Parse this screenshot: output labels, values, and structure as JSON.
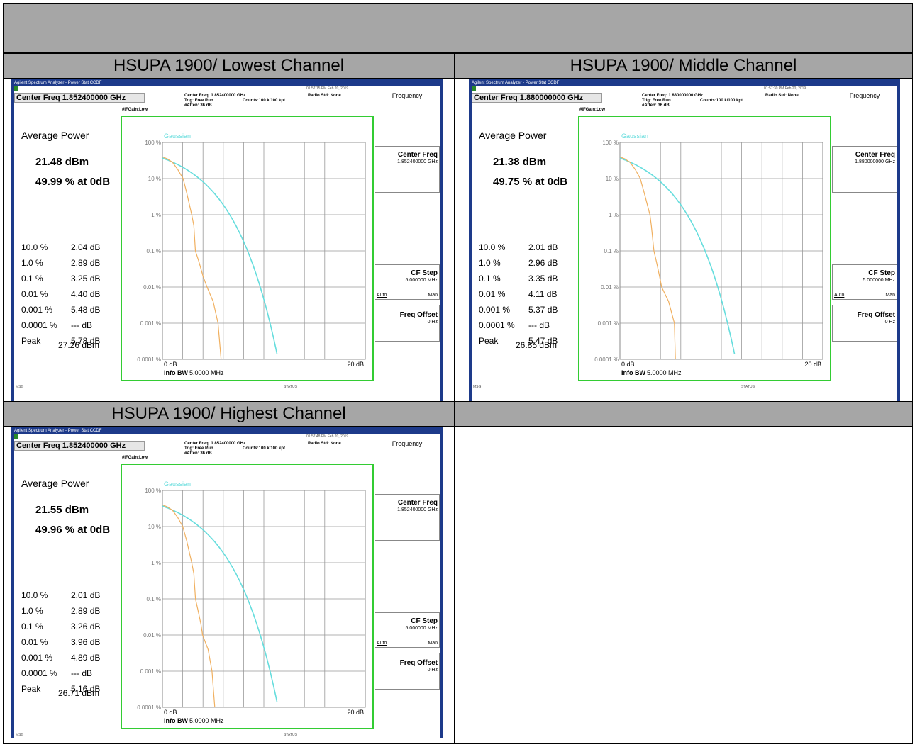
{
  "panels": [
    {
      "heading": "HSUPA 1900/ Lowest Channel",
      "titlebar": "Agilent Spectrum Analyzer - Power Stat CCDF",
      "timestamp": "01:57:15 PM Feb 20, 2019",
      "center_freq_box": "Center Freq 1.852400000 GHz",
      "meta_center": "Center Freq: 1.852400000 GHz",
      "meta_trig": "Trig: Free Run",
      "meta_counts": "Counts:100 k/100 kpt",
      "meta_radio": "Radio Std: None",
      "meta_gain": "#IFGain:Low",
      "meta_atten": "#Atten: 36 dB",
      "avg_title": "Average Power",
      "avg_power": "21.48 dBm",
      "pct_at_0db": "49.99 % at 0dB",
      "stats": [
        {
          "k": "10.0 %",
          "v": "2.04 dB"
        },
        {
          "k": "1.0 %",
          "v": "2.89 dB"
        },
        {
          "k": "0.1 %",
          "v": "3.25 dB"
        },
        {
          "k": "0.01 %",
          "v": "4.40 dB"
        },
        {
          "k": "0.001 %",
          "v": "5.48 dB"
        },
        {
          "k": "0.0001 %",
          "v": "--- dB"
        },
        {
          "k": "Peak",
          "v": "5.78 dB"
        }
      ],
      "peak_dbm": "27.26 dBm",
      "softkey_title": "Frequency",
      "sk_center_title": "Center Freq",
      "sk_center_val": "1.852400000 GHz",
      "sk_step_title": "CF Step",
      "sk_step_val": "5.000000 MHz",
      "sk_auto": "Auto",
      "sk_man": "Man",
      "sk_offset_title": "Freq Offset",
      "sk_offset_val": "0 Hz",
      "curve": {
        "gaussian_label": "Gaussian",
        "measured_db": [
          0,
          0.5,
          1.0,
          1.5,
          2.04,
          2.4,
          2.89,
          3.1,
          3.25,
          3.6,
          4.0,
          4.4,
          5.0,
          5.48,
          5.78
        ],
        "measured_pct": [
          40,
          35,
          28,
          18,
          10,
          4,
          1.0,
          0.5,
          0.1,
          0.05,
          0.02,
          0.01,
          0.004,
          0.001,
          0.0001
        ]
      },
      "msg": "MSG",
      "status": "STATUS"
    },
    {
      "heading": "HSUPA 1900/ Middle Channel",
      "titlebar": "Agilent Spectrum Analyzer - Power Stat CCDF",
      "timestamp": "01:57:30 PM Feb 20, 2019",
      "center_freq_box": "Center Freq 1.880000000 GHz",
      "meta_center": "Center Freq: 1.880000000 GHz",
      "meta_trig": "Trig: Free Run",
      "meta_counts": "Counts:100 k/100 kpt",
      "meta_radio": "Radio Std: None",
      "meta_gain": "#IFGain:Low",
      "meta_atten": "#Atten: 36 dB",
      "avg_title": "Average Power",
      "avg_power": "21.38 dBm",
      "pct_at_0db": "49.75 % at 0dB",
      "stats": [
        {
          "k": "10.0 %",
          "v": "2.01 dB"
        },
        {
          "k": "1.0 %",
          "v": "2.96 dB"
        },
        {
          "k": "0.1 %",
          "v": "3.35 dB"
        },
        {
          "k": "0.01 %",
          "v": "4.11 dB"
        },
        {
          "k": "0.001 %",
          "v": "5.37 dB"
        },
        {
          "k": "0.0001 %",
          "v": "--- dB"
        },
        {
          "k": "Peak",
          "v": "5.47 dB"
        }
      ],
      "peak_dbm": "26.85 dBm",
      "softkey_title": "Frequency",
      "sk_center_title": "Center Freq",
      "sk_center_val": "1.880000000 GHz",
      "sk_step_title": "CF Step",
      "sk_step_val": "5.000000 MHz",
      "sk_auto": "Auto",
      "sk_man": "Man",
      "sk_offset_title": "Freq Offset",
      "sk_offset_val": "0 Hz",
      "curve": {
        "gaussian_label": "Gaussian",
        "measured_db": [
          0,
          0.5,
          1.0,
          1.5,
          2.01,
          2.4,
          2.96,
          3.1,
          3.35,
          3.6,
          3.9,
          4.11,
          4.8,
          5.37,
          5.47
        ],
        "measured_pct": [
          40,
          35,
          28,
          18,
          10,
          4,
          1.0,
          0.5,
          0.1,
          0.05,
          0.02,
          0.01,
          0.004,
          0.001,
          0.0001
        ]
      },
      "msg": "MSG",
      "status": "STATUS"
    },
    {
      "heading": "HSUPA 1900/ Highest Channel",
      "titlebar": "Agilent Spectrum Analyzer - Power Stat CCDF",
      "timestamp": "01:57:48 PM Feb 20, 2019",
      "center_freq_box": "Center Freq 1.852400000 GHz",
      "meta_center": "Center Freq: 1.852400000 GHz",
      "meta_trig": "Trig: Free Run",
      "meta_counts": "Counts:100 k/100 kpt",
      "meta_radio": "Radio Std: None",
      "meta_gain": "#IFGain:Low",
      "meta_atten": "#Atten: 36 dB",
      "avg_title": "Average Power",
      "avg_power": "21.55 dBm",
      "pct_at_0db": "49.96 % at 0dB",
      "stats": [
        {
          "k": "10.0 %",
          "v": "2.01 dB"
        },
        {
          "k": "1.0 %",
          "v": "2.89 dB"
        },
        {
          "k": "0.1 %",
          "v": "3.26 dB"
        },
        {
          "k": "0.01 %",
          "v": "3.96 dB"
        },
        {
          "k": "0.001 %",
          "v": "4.89 dB"
        },
        {
          "k": "0.0001 %",
          "v": "--- dB"
        },
        {
          "k": "Peak",
          "v": "5.16 dB"
        }
      ],
      "peak_dbm": "26.71 dBm",
      "softkey_title": "Frequency",
      "sk_center_title": "Center Freq",
      "sk_center_val": "1.852400000 GHz",
      "sk_step_title": "CF Step",
      "sk_step_val": "5.000000 MHz",
      "sk_auto": "Auto",
      "sk_man": "Man",
      "sk_offset_title": "Freq Offset",
      "sk_offset_val": "0 Hz",
      "curve": {
        "gaussian_label": "Gaussian",
        "measured_db": [
          0,
          0.5,
          1.0,
          1.5,
          2.01,
          2.4,
          2.89,
          3.1,
          3.26,
          3.5,
          3.8,
          3.96,
          4.5,
          4.89,
          5.16
        ],
        "measured_pct": [
          40,
          35,
          28,
          18,
          10,
          4,
          1.0,
          0.5,
          0.1,
          0.05,
          0.02,
          0.01,
          0.004,
          0.001,
          0.0001
        ]
      },
      "msg": "MSG",
      "status": "STATUS"
    }
  ],
  "chart_axis": {
    "y_ticks": [
      "100 %",
      "10 %",
      "1 %",
      "0.1 %",
      "0.01 %",
      "0.001 %",
      "0.0001 %"
    ],
    "x_min_label": "0 dB",
    "x_max_label": "20 dB",
    "info_bw_label": "Info BW",
    "info_bw_value": "5.0000 MHz"
  },
  "colors": {
    "header_gray": "#a6a6a6",
    "gaussian": "#66dddd",
    "measured": "#f0b060",
    "plot_border": "#33cc33",
    "titlebar": "#1d3a8a"
  }
}
